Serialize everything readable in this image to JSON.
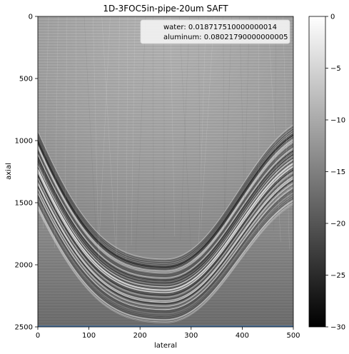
{
  "chart_data": {
    "type": "heatmap",
    "title": "1D-3FOC5in-pipe-20um SAFT",
    "xlabel": "lateral",
    "ylabel": "axial",
    "xlim": [
      0,
      500
    ],
    "ylim": [
      2500,
      0
    ],
    "x_ticks": [
      "0",
      "100",
      "200",
      "300",
      "400",
      "500"
    ],
    "y_ticks": [
      "0",
      "500",
      "1000",
      "1500",
      "2000",
      "2500"
    ],
    "colorbar": {
      "range": [
        -30,
        0
      ],
      "ticks": [
        "0",
        "−5",
        "−10",
        "−15",
        "−20",
        "−25",
        "−30"
      ],
      "colormap": "gray"
    },
    "legend": {
      "placement": "top-right",
      "entries": [
        "water: 0.018717510000000014",
        "aluminum: 0.08021790000000005"
      ]
    },
    "image_description_values": {
      "interface_curve_apex_axial": 1950,
      "interface_curve_edge_axial": 850
    }
  }
}
